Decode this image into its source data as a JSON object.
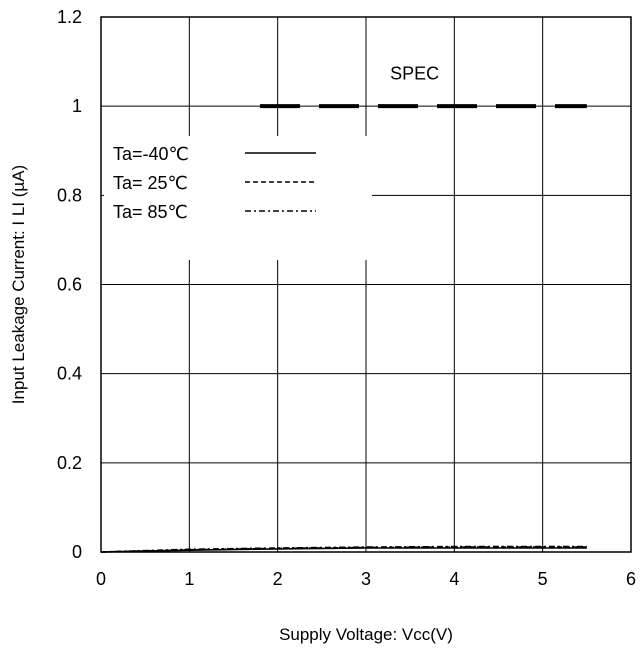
{
  "chart_data": {
    "type": "line",
    "title": "",
    "xlabel": "Supply Voltage: Vcc(V)",
    "ylabel": "Input Leakage Current: I LI (µA)",
    "xlim": [
      0,
      6
    ],
    "ylim": [
      0,
      1.2
    ],
    "x_ticks": [
      "0",
      "1",
      "2",
      "3",
      "4",
      "5",
      "6"
    ],
    "y_ticks": [
      "0",
      "0.2",
      "0.4",
      "0.6",
      "0.8",
      "1",
      "1.2"
    ],
    "grid": true,
    "legend_position": "upper-left",
    "annotations": [
      {
        "text": "SPEC",
        "x": 3.55,
        "y": 1.06
      }
    ],
    "spec_line": {
      "label": "SPEC",
      "x": [
        1.8,
        5.5
      ],
      "y": 1.0
    },
    "series": [
      {
        "name": "Ta=-40℃",
        "style": "solid",
        "x": [
          0,
          1,
          2,
          3,
          4,
          5,
          5.5
        ],
        "y": [
          0.0,
          0.004,
          0.007,
          0.009,
          0.009,
          0.009,
          0.009
        ]
      },
      {
        "name": "Ta= 25℃",
        "style": "dashed",
        "x": [
          0,
          1,
          2,
          3,
          4,
          5,
          5.5
        ],
        "y": [
          0.0,
          0.005,
          0.008,
          0.01,
          0.011,
          0.011,
          0.011
        ]
      },
      {
        "name": "Ta= 85℃",
        "style": "dashdot",
        "x": [
          0,
          1,
          2,
          3,
          4,
          5,
          5.5
        ],
        "y": [
          0.0,
          0.006,
          0.009,
          0.011,
          0.012,
          0.012,
          0.012
        ]
      }
    ]
  }
}
